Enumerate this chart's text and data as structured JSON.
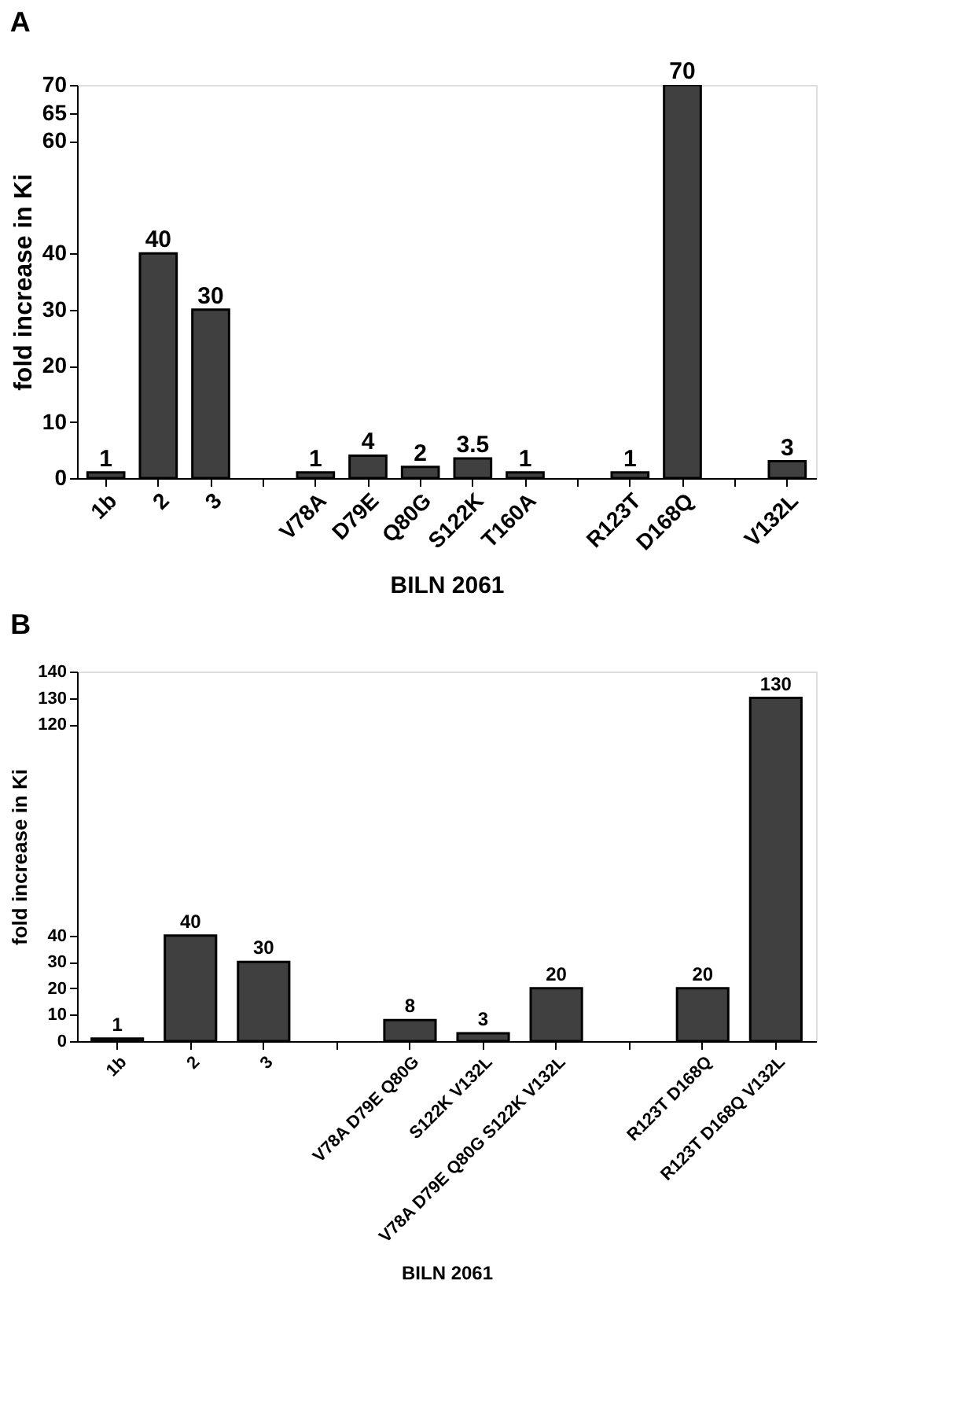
{
  "chart_data": [
    {
      "type": "bar",
      "title": "A",
      "xlabel": "BILN 2061",
      "ylabel": "fold increase in Ki",
      "categories": [
        "1b",
        "2",
        "3",
        null,
        "V78A",
        "D79E",
        "Q80G",
        "S122K",
        "T160A",
        null,
        "R123T",
        "D168Q",
        null,
        "V132L"
      ],
      "values": [
        1,
        40,
        30,
        null,
        1,
        4,
        2,
        3.5,
        1,
        null,
        1,
        70,
        null,
        3
      ],
      "color": "#404040",
      "ylim": [
        0,
        70
      ],
      "yticks": [
        0,
        10,
        20,
        30,
        40,
        60,
        65,
        70
      ],
      "data_labels": true,
      "grid": false
    },
    {
      "type": "bar",
      "title": "B",
      "xlabel": "BILN 2061",
      "ylabel": "fold increase in Ki",
      "categories": [
        "1b",
        "2",
        "3",
        null,
        "V78A D79E Q80G",
        "S122K V132L",
        "V78A D79E Q80G S122K V132L",
        null,
        "R123T D168Q",
        "R123T D168Q V132L"
      ],
      "values": [
        1,
        40,
        30,
        null,
        8,
        3,
        20,
        null,
        20,
        130
      ],
      "color": "#404040",
      "ylim": [
        0,
        140
      ],
      "yticks": [
        0,
        10,
        20,
        30,
        40,
        120,
        130,
        140
      ],
      "data_labels": true,
      "grid": false
    }
  ]
}
